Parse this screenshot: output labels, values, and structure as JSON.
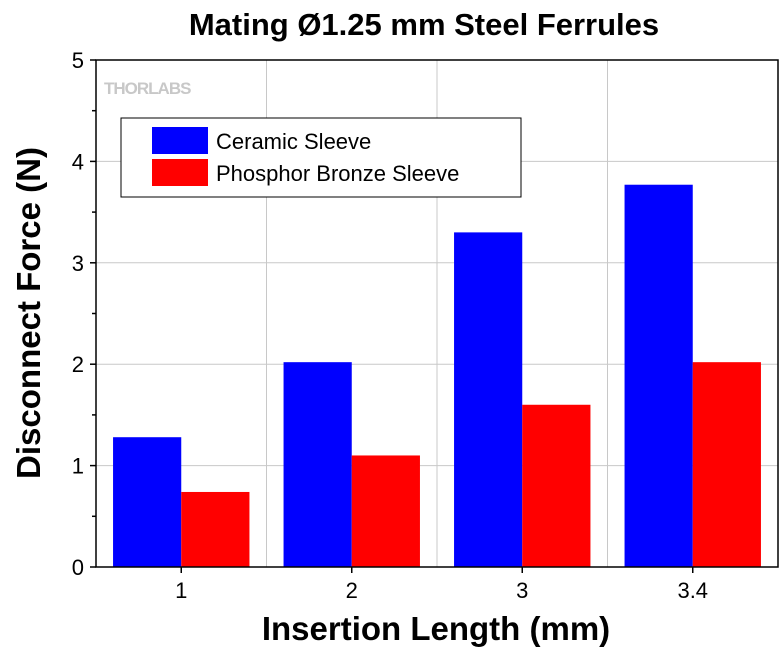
{
  "chart_data": {
    "type": "bar",
    "title": "Mating Ø1.25 mm Steel Ferrules",
    "xlabel": "Insertion Length (mm)",
    "ylabel": "Disconnect Force (N)",
    "categories": [
      "1",
      "2",
      "3",
      "3.4"
    ],
    "series": [
      {
        "name": "Ceramic Sleeve",
        "color": "#0000FF",
        "values": [
          1.28,
          2.02,
          3.3,
          3.77
        ]
      },
      {
        "name": "Phosphor Bronze Sleeve",
        "color": "#FF0000",
        "values": [
          0.74,
          1.1,
          1.6,
          2.02
        ]
      }
    ],
    "ylim": [
      0,
      5
    ],
    "yticks": [
      "0",
      "1",
      "2",
      "3",
      "4",
      "5"
    ],
    "grid": true,
    "legend_position": "top-left",
    "watermark": "THORLABS"
  }
}
